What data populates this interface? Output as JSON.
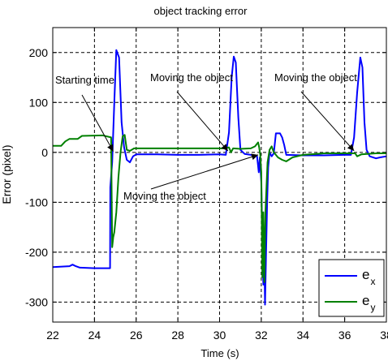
{
  "chart_data": {
    "type": "line",
    "title": "object tracking error",
    "xlabel": "Time (s)",
    "ylabel": "Error (pixel)",
    "xlim": [
      22,
      38
    ],
    "ylim": [
      -340,
      250
    ],
    "grid": true,
    "grid_style": "dashed",
    "legend_position": "bottom-right",
    "x_ticks": [
      22,
      24,
      26,
      28,
      30,
      32,
      34,
      36,
      38
    ],
    "x_tick_labels": [
      "22",
      "24",
      "26",
      "28",
      "30",
      "32",
      "34",
      "36",
      "38"
    ],
    "y_ticks": [
      -300,
      -200,
      -100,
      0,
      100,
      200
    ],
    "y_tick_labels": [
      "-300",
      "-200",
      "-100",
      "0",
      "100",
      "200"
    ],
    "series": [
      {
        "name": "e",
        "subscript": "x",
        "color": "#0000ff",
        "points": [
          [
            22.0,
            -230
          ],
          [
            22.8,
            -228
          ],
          [
            22.95,
            -225
          ],
          [
            23.1,
            -228
          ],
          [
            23.3,
            -231
          ],
          [
            24.0,
            -232
          ],
          [
            24.75,
            -232
          ],
          [
            24.76,
            -70
          ],
          [
            24.85,
            -20
          ],
          [
            24.95,
            100
          ],
          [
            25.05,
            205
          ],
          [
            25.18,
            190
          ],
          [
            25.3,
            60
          ],
          [
            25.42,
            10
          ],
          [
            25.55,
            -15
          ],
          [
            25.7,
            -20
          ],
          [
            25.85,
            -8
          ],
          [
            26.0,
            -4
          ],
          [
            27.0,
            -4
          ],
          [
            28.0,
            -5
          ],
          [
            29.0,
            -5
          ],
          [
            30.0,
            -4
          ],
          [
            30.3,
            -5
          ],
          [
            30.45,
            40
          ],
          [
            30.58,
            150
          ],
          [
            30.68,
            192
          ],
          [
            30.78,
            180
          ],
          [
            30.9,
            70
          ],
          [
            31.0,
            5
          ],
          [
            31.2,
            -3
          ],
          [
            31.5,
            -5
          ],
          [
            31.8,
            -8
          ],
          [
            31.88,
            -40
          ],
          [
            31.93,
            -10
          ],
          [
            32.0,
            -60
          ],
          [
            32.05,
            -180
          ],
          [
            32.1,
            -265
          ],
          [
            32.14,
            -200
          ],
          [
            32.18,
            -305
          ],
          [
            32.23,
            -200
          ],
          [
            32.28,
            -100
          ],
          [
            32.33,
            -30
          ],
          [
            32.4,
            0
          ],
          [
            32.5,
            -8
          ],
          [
            32.6,
            -2
          ],
          [
            32.7,
            38
          ],
          [
            32.9,
            38
          ],
          [
            33.0,
            30
          ],
          [
            33.1,
            15
          ],
          [
            33.2,
            -5
          ],
          [
            34.0,
            -6
          ],
          [
            35.0,
            -6
          ],
          [
            36.0,
            -5
          ],
          [
            36.3,
            -5
          ],
          [
            36.45,
            30
          ],
          [
            36.6,
            120
          ],
          [
            36.75,
            190
          ],
          [
            36.85,
            170
          ],
          [
            36.95,
            60
          ],
          [
            37.05,
            5
          ],
          [
            37.2,
            -8
          ],
          [
            37.5,
            -12
          ],
          [
            37.7,
            -10
          ],
          [
            38.0,
            -8
          ]
        ]
      },
      {
        "name": "e",
        "subscript": "y",
        "color": "#008000",
        "points": [
          [
            22.0,
            13
          ],
          [
            22.4,
            13
          ],
          [
            22.6,
            22
          ],
          [
            22.8,
            27
          ],
          [
            23.2,
            27
          ],
          [
            23.4,
            33
          ],
          [
            24.4,
            34
          ],
          [
            24.8,
            30
          ],
          [
            24.85,
            -190
          ],
          [
            24.9,
            -170
          ],
          [
            24.95,
            -160
          ],
          [
            25.05,
            -120
          ],
          [
            25.15,
            -50
          ],
          [
            25.25,
            0
          ],
          [
            25.35,
            32
          ],
          [
            25.45,
            35
          ],
          [
            25.55,
            5
          ],
          [
            25.7,
            3
          ],
          [
            25.9,
            8
          ],
          [
            26.5,
            8
          ],
          [
            27.5,
            8
          ],
          [
            28.5,
            8
          ],
          [
            29.5,
            8
          ],
          [
            30.2,
            8
          ],
          [
            30.45,
            10
          ],
          [
            30.55,
            0
          ],
          [
            30.65,
            8
          ],
          [
            31.0,
            7
          ],
          [
            31.5,
            8
          ],
          [
            31.7,
            12
          ],
          [
            31.85,
            20
          ],
          [
            31.9,
            10
          ],
          [
            31.95,
            -5
          ],
          [
            32.0,
            -40
          ],
          [
            32.05,
            -250
          ],
          [
            32.1,
            -120
          ],
          [
            32.15,
            -260
          ],
          [
            32.2,
            -120
          ],
          [
            32.3,
            -20
          ],
          [
            32.4,
            5
          ],
          [
            32.5,
            12
          ],
          [
            32.6,
            0
          ],
          [
            32.8,
            -10
          ],
          [
            33.0,
            -15
          ],
          [
            33.2,
            -18
          ],
          [
            33.5,
            -10
          ],
          [
            34.0,
            -5
          ],
          [
            35.0,
            -2
          ],
          [
            36.0,
            -2
          ],
          [
            36.5,
            -2
          ],
          [
            36.6,
            -8
          ],
          [
            36.8,
            -4
          ],
          [
            37.5,
            -2
          ],
          [
            38.0,
            -2
          ]
        ]
      }
    ],
    "annotations": [
      {
        "text": "Starting time",
        "x": 24.9,
        "y": 2
      },
      {
        "text": "Moving the object",
        "x": 30.4,
        "y": 3
      },
      {
        "text": "Moving the object",
        "x": 31.85,
        "y": -5
      },
      {
        "text": "Moving the object",
        "x": 36.45,
        "y": 3
      }
    ]
  }
}
